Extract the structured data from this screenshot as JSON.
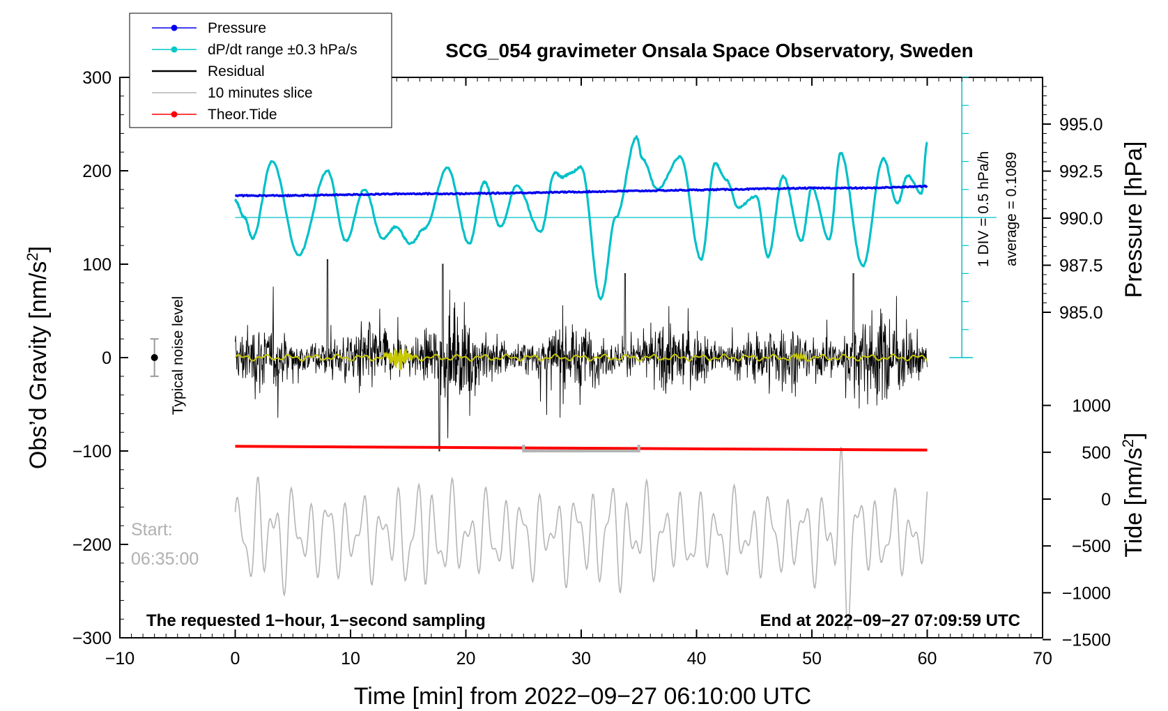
{
  "chart_data": {
    "type": "line",
    "title": "SCG_054 gravimeter Onsala Space Observatory, Sweden",
    "xlabel": "Time [min] from 2022−09−27 06:10:00 UTC",
    "ylabel_left": "Obs’d Gravity [nm/s²]",
    "ylabel_left_main": "Obs’d Gravity [nm/s",
    "ylabel_right_pressure": "Pressure [hPa]",
    "ylabel_right_tide": "Tide [nm/s²]",
    "ylabel_right_tide_main": "Tide [nm/s",
    "superscript": "2",
    "xlim": [
      -10,
      70
    ],
    "ylim_left": [
      -300,
      300
    ],
    "x_ticks": [
      "−10",
      "0",
      "10",
      "20",
      "30",
      "40",
      "50",
      "60",
      "70"
    ],
    "y_ticks_left": [
      "300",
      "200",
      "100",
      "0",
      "−100",
      "−200",
      "−300"
    ],
    "pressure_ticks": [
      "995.0",
      "992.5",
      "990.0",
      "987.5",
      "985.0"
    ],
    "tide_ticks": [
      "1000",
      "500",
      "0",
      "−500",
      "−1000",
      "−1500"
    ],
    "legend": [
      {
        "label": "Pressure",
        "color": "#0000ee",
        "marker": true
      },
      {
        "label": "dP/dt range ±0.3 hPa/s",
        "color": "#00c8c8",
        "marker": true
      },
      {
        "label": "Residual",
        "color": "#000000",
        "marker": false
      },
      {
        "label": "10 minutes slice",
        "color": "#b4b4b4",
        "marker": false
      },
      {
        "label": "Theor.Tide",
        "color": "#ff0000",
        "marker": true
      }
    ],
    "annotations": {
      "bottom_left": "The requested 1−hour, 1−second sampling",
      "bottom_right": "End at 2022−09−27 07:09:59 UTC",
      "start_label": "Start:",
      "start_time": "06:35:00",
      "noise": "Typical noise level",
      "div": "1 DIV = 0.5 hPa/h",
      "average": "average = 0.1089"
    },
    "colors": {
      "pressure": "#0000ee",
      "dpdt": "#00c0c8",
      "residual": "#000000",
      "filtered": "#c8c800",
      "slice": "#b4b4b4",
      "tide": "#ff0000"
    },
    "series": [
      {
        "name": "Pressure",
        "unit": "hPa",
        "x": [
          0,
          5,
          10,
          15,
          20,
          25,
          30,
          35,
          40,
          45,
          50,
          55,
          60
        ],
        "values": [
          991.2,
          991.2,
          991.25,
          991.3,
          991.3,
          991.35,
          991.4,
          991.45,
          991.5,
          991.55,
          991.6,
          991.6,
          991.7
        ]
      },
      {
        "name": "dP/dt range ±0.3 hPa/s",
        "unit": "nm/s² scale",
        "x": [
          0,
          0.8,
          1.5,
          3.2,
          5.5,
          8.0,
          9.6,
          11.2,
          12.8,
          13.9,
          15.2,
          16.4,
          18.4,
          20.3,
          21.6,
          23.0,
          24.4,
          26.5,
          27.7,
          28.4,
          29.0,
          30.0,
          31.7,
          33.0,
          34.8,
          35.3,
          36.6,
          38.6,
          40.4,
          41.6,
          42.6,
          43.6,
          45.2,
          46.2,
          47.5,
          49.1,
          50.0,
          51.5,
          52.5,
          54.4,
          56.2,
          57.4,
          58.3,
          59.5,
          60.0
        ],
        "values": [
          168,
          150,
          128,
          210,
          110,
          200,
          125,
          180,
          127,
          140,
          122,
          138,
          203,
          122,
          188,
          140,
          184,
          135,
          198,
          193,
          197,
          204,
          63,
          150,
          236,
          213,
          180,
          215,
          105,
          208,
          190,
          161,
          173,
          108,
          194,
          125,
          182,
          126,
          219,
          98,
          213,
          165,
          195,
          176,
          230
        ]
      },
      {
        "name": "Theor.Tide",
        "unit": "nm/s²",
        "x": [
          0,
          60
        ],
        "values": [
          -95,
          -99
        ]
      }
    ],
    "scale_bar": {
      "x": [
        63,
        63
      ],
      "y": [
        0,
        300
      ]
    },
    "slice_bracket": {
      "x": [
        25,
        35
      ],
      "y": -100
    },
    "noise_bar": {
      "x": -7,
      "center": 0,
      "half_range": 20
    }
  }
}
